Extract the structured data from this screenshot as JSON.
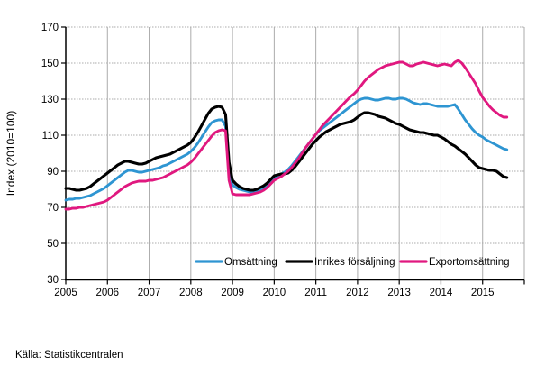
{
  "source": "Källa: Statistikcentralen",
  "chart_data": {
    "type": "line",
    "title": "",
    "xlabel": "",
    "ylabel": "Index (2010=100)",
    "ylim": [
      30,
      170
    ],
    "xlim": [
      2005,
      2016
    ],
    "y_ticks": [
      30,
      50,
      70,
      90,
      110,
      130,
      150,
      170
    ],
    "x_ticks": [
      2005,
      2006,
      2007,
      2008,
      2009,
      2010,
      2011,
      2012,
      2013,
      2014,
      2015
    ],
    "grid": true,
    "legend_position": "bottom-inside",
    "x_start_year": 2005,
    "points_per_year": 12,
    "axis_color": "#000000",
    "grid_color": "#ababab",
    "series": [
      {
        "name": "Omsättning",
        "color": "#2e95d2",
        "values": [
          74,
          74.5,
          74.5,
          75,
          75,
          75.5,
          76,
          76.5,
          77.5,
          78.5,
          79.5,
          80.5,
          82,
          83.5,
          85,
          86.5,
          88,
          89.5,
          90.5,
          90.5,
          90,
          89.5,
          89.5,
          90,
          90.5,
          91,
          91.5,
          92,
          93,
          93.5,
          94.5,
          95.5,
          96.5,
          97.5,
          98.5,
          99.5,
          101,
          103,
          105.5,
          108.5,
          111.5,
          114.5,
          117,
          118,
          118.5,
          118.5,
          115,
          90,
          82.5,
          81,
          80,
          79.5,
          79,
          78.5,
          78.5,
          79,
          79.5,
          80.5,
          82,
          84,
          86,
          87.5,
          88.5,
          89.5,
          91,
          93,
          95.5,
          98,
          100.5,
          103,
          105.5,
          108,
          110.5,
          112.5,
          114,
          115.5,
          117,
          118.5,
          120,
          121.5,
          123,
          124.5,
          126,
          127.5,
          129,
          130,
          130.5,
          130.5,
          130,
          129.5,
          129.5,
          130,
          130.5,
          130.5,
          130,
          130,
          130.5,
          130.5,
          130,
          129,
          128,
          127.5,
          127,
          127.5,
          127.5,
          127,
          126.5,
          126,
          126,
          126,
          126,
          126.5,
          127,
          124.5,
          121.5,
          118.5,
          116,
          113.5,
          111.5,
          110,
          109,
          107.5,
          106.5,
          105.5,
          104.5,
          103.5,
          102.5,
          102
        ]
      },
      {
        "name": "Inrikes försäljning",
        "color": "#000000",
        "values": [
          80.5,
          80.5,
          80,
          79.5,
          79.5,
          80,
          80.5,
          81.5,
          83,
          84.5,
          86,
          87.5,
          89,
          90.5,
          92,
          93.5,
          94.5,
          95.5,
          95.5,
          95,
          94.5,
          94,
          94,
          94.5,
          95.5,
          96.5,
          97.5,
          98,
          98.5,
          99,
          99.5,
          100.5,
          101.5,
          102.5,
          103.5,
          104.5,
          106,
          108.5,
          111.5,
          115,
          118.5,
          122,
          124.5,
          125.5,
          126,
          125.5,
          121.5,
          95,
          85,
          83,
          81.5,
          80.5,
          80,
          79.5,
          79.5,
          80,
          81,
          82,
          83.5,
          85.5,
          87.5,
          88,
          88.5,
          88.5,
          89,
          90.5,
          92.5,
          95,
          97.5,
          100,
          102.5,
          105,
          107,
          109,
          110.5,
          112,
          113,
          114,
          115,
          116,
          116.5,
          117,
          117.5,
          118.5,
          120,
          121.5,
          122.5,
          122.5,
          122,
          121.5,
          120.5,
          120,
          119.5,
          118.5,
          117.5,
          116.5,
          116,
          115,
          114,
          113,
          112.5,
          112,
          111.5,
          111.5,
          111,
          110.5,
          110,
          110,
          109,
          108,
          106.5,
          105,
          104,
          102.5,
          101,
          99.5,
          97.5,
          95.5,
          93.5,
          92,
          91.5,
          91,
          90.5,
          90.5,
          90,
          88.5,
          87,
          86.5
        ]
      },
      {
        "name": "Exportomsättning",
        "color": "#e0187f",
        "values": [
          69,
          69,
          69.5,
          69.5,
          70,
          70,
          70.5,
          71,
          71.5,
          72,
          72.5,
          73,
          74,
          75.5,
          77,
          78.5,
          80,
          81.5,
          82.5,
          83.5,
          84,
          84.5,
          84.5,
          84.5,
          85,
          85,
          85.5,
          86,
          86.5,
          87.5,
          88.5,
          89.5,
          90.5,
          91.5,
          92.5,
          93.5,
          95,
          97,
          99.5,
          102,
          104.5,
          107,
          109.5,
          111.5,
          112.5,
          113,
          112.5,
          85,
          77.5,
          77,
          77,
          77,
          77,
          77,
          77.5,
          78,
          78.5,
          79.5,
          81,
          83,
          85,
          86,
          87,
          88.5,
          90,
          92,
          94.5,
          97,
          100,
          103,
          105.5,
          108,
          110.5,
          113,
          115.5,
          117.5,
          119.5,
          121.5,
          123.5,
          125.5,
          127.5,
          129.5,
          131.5,
          133,
          135,
          137.5,
          140,
          142,
          143.5,
          145,
          146.5,
          147.5,
          148.5,
          149,
          149.5,
          150,
          150.5,
          150.5,
          149.5,
          148.5,
          148.5,
          149.5,
          150,
          150.5,
          150,
          149.5,
          149,
          148.5,
          149,
          149.5,
          149,
          148.5,
          150.5,
          151.5,
          150,
          147.5,
          144.5,
          141.5,
          138.5,
          134.5,
          131,
          128.5,
          126,
          124,
          122.5,
          121,
          120,
          120
        ]
      }
    ]
  }
}
